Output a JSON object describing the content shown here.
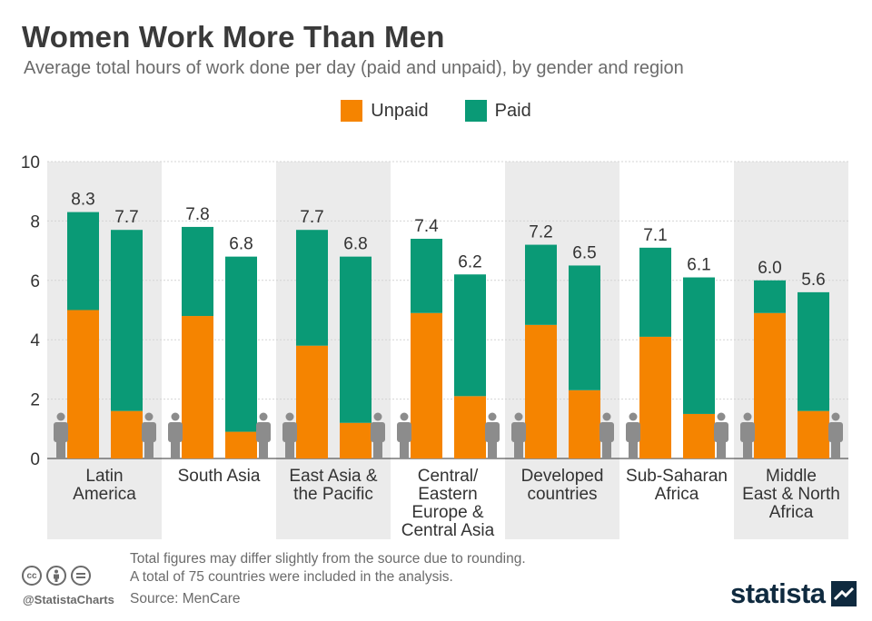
{
  "header": {
    "title": "Women Work More Than Men",
    "subtitle": "Average total hours of work done per day (paid and unpaid), by gender and region"
  },
  "legend": {
    "items": [
      {
        "label": "Unpaid",
        "color": "#f58400"
      },
      {
        "label": "Paid",
        "color": "#0a9a76"
      }
    ]
  },
  "chart_data": {
    "type": "bar",
    "stacked": true,
    "grouping": "women-left, men-right per region",
    "ylim": [
      0,
      10
    ],
    "yticks": [
      "0",
      "2",
      "4",
      "6",
      "8",
      "10"
    ],
    "grid": true,
    "legend_position": "top-center",
    "categories": [
      [
        "Latin",
        "America"
      ],
      [
        "South Asia"
      ],
      [
        "East Asia &",
        "the Pacific"
      ],
      [
        "Central/",
        "Eastern",
        "Europe &",
        "Central Asia"
      ],
      [
        "Developed",
        "countries"
      ],
      [
        "Sub-Saharan",
        "Africa"
      ],
      [
        "Middle",
        "East & North",
        "Africa"
      ]
    ],
    "series": [
      {
        "name": "Unpaid",
        "color": "#f58400",
        "women": [
          5.0,
          4.8,
          3.8,
          4.9,
          4.5,
          4.1,
          4.9
        ],
        "men": [
          1.6,
          0.9,
          1.2,
          2.1,
          2.3,
          1.5,
          1.6
        ]
      },
      {
        "name": "Paid",
        "color": "#0a9a76",
        "women": [
          3.3,
          3.0,
          3.9,
          2.5,
          2.7,
          3.0,
          1.1
        ],
        "men": [
          6.1,
          5.9,
          5.6,
          4.1,
          4.2,
          4.6,
          4.0
        ]
      }
    ],
    "totals": {
      "women": [
        "8.3",
        "7.8",
        "7.7",
        "7.4",
        "7.2",
        "7.1",
        "6.0"
      ],
      "men": [
        "7.7",
        "6.8",
        "6.8",
        "6.2",
        "6.5",
        "6.1",
        "5.6"
      ]
    },
    "shaded_columns": [
      true,
      false,
      true,
      false,
      true,
      false,
      true
    ],
    "colors": {
      "shade": "#ebebeb",
      "grid": "#d4d4d4",
      "icon": "#8c8c8c"
    }
  },
  "footer": {
    "note_line1": "Total figures may differ slightly from the source due to rounding.",
    "note_line2": "A total of 75 countries were included in the analysis.",
    "source": "Source: MenCare",
    "handle": "@StatistaCharts",
    "logo": "statista",
    "cc_icons": [
      "cc-icon",
      "attribution-icon",
      "no-derivatives-icon"
    ]
  }
}
